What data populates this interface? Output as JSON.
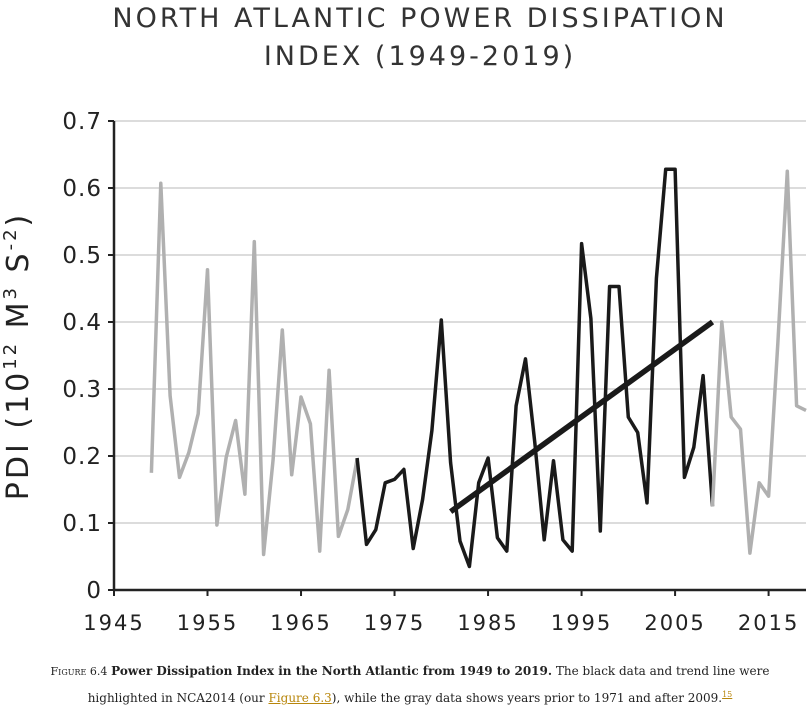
{
  "chart_data": {
    "type": "line",
    "title_line1": "NORTH ATLANTIC POWER DISSIPATION",
    "title_line2": "INDEX (1949-2019)",
    "ylabel_main": "PDI (10",
    "ylabel_exp1": "12",
    "ylabel_mid": " M",
    "ylabel_exp2": "3",
    "ylabel_s": " S",
    "ylabel_exp3": "-2",
    "ylabel_close": ")",
    "xlabel": "",
    "xlim": [
      1945,
      2019
    ],
    "ylim": [
      0,
      0.7
    ],
    "yticks": [
      "0",
      "0.1",
      "0.2",
      "0.3",
      "0.4",
      "0.5",
      "0.6",
      "0.7"
    ],
    "xticks": [
      "1945",
      "1955",
      "1965",
      "1975",
      "1985",
      "1995",
      "2005",
      "2015"
    ],
    "grid": "horizontal",
    "colors": {
      "gray": "#b0b0b0",
      "black": "#1a1a1a",
      "grid": "#d0d0d0"
    },
    "series": [
      {
        "years": [
          1949,
          1950,
          1951,
          1952,
          1953,
          1954,
          1955,
          1956,
          1957,
          1958,
          1959,
          1960,
          1961,
          1962,
          1963,
          1964,
          1965,
          1966,
          1967,
          1968,
          1969,
          1970,
          1971
        ],
        "values": [
          0.175,
          0.607,
          0.29,
          0.168,
          0.205,
          0.263,
          0.478,
          0.097,
          0.198,
          0.253,
          0.143,
          0.52,
          0.053,
          0.193,
          0.388,
          0.172,
          0.288,
          0.248,
          0.058,
          0.328,
          0.08,
          0.12,
          0.195
        ],
        "color": "gray"
      },
      {
        "years": [
          1971,
          1972,
          1973,
          1974,
          1975,
          1976,
          1977,
          1978,
          1979,
          1980,
          1981,
          1982,
          1983,
          1984,
          1985,
          1986,
          1987,
          1988,
          1989,
          1990,
          1991,
          1992,
          1993,
          1994,
          1995,
          1996,
          1997,
          1998,
          1999,
          2000,
          2001,
          2002,
          2003,
          2004,
          2005,
          2006,
          2007,
          2008,
          2009
        ],
        "values": [
          0.197,
          0.068,
          0.09,
          0.16,
          0.165,
          0.18,
          0.062,
          0.135,
          0.238,
          0.403,
          0.19,
          0.073,
          0.035,
          0.16,
          0.197,
          0.078,
          0.058,
          0.275,
          0.345,
          0.22,
          0.075,
          0.193,
          0.075,
          0.058,
          0.517,
          0.405,
          0.088,
          0.453,
          0.453,
          0.258,
          0.235,
          0.13,
          0.465,
          0.628,
          0.628,
          0.168,
          0.213,
          0.32,
          0.125
        ],
        "color": "black"
      },
      {
        "years": [
          2009,
          2010,
          2011,
          2012,
          2013,
          2014,
          2015,
          2016,
          2017,
          2018,
          2019
        ],
        "values": [
          0.125,
          0.4,
          0.258,
          0.24,
          0.055,
          0.16,
          0.14,
          0.37,
          0.625,
          0.275,
          0.268
        ],
        "color": "gray"
      }
    ],
    "trend_line": {
      "x": [
        1981,
        2009
      ],
      "y": [
        0.117,
        0.4
      ],
      "color": "black"
    }
  },
  "caption": {
    "figure_label": "Figure 6.4",
    "bold_text": "Power Dissipation Index in the North Atlantic from 1949 to 2019.",
    "text_1": "The black data and trend line were highlighted in NCA2014 (our",
    "link_text": "Figure 6.3",
    "text_2": "), while the gray data shows years prior to 1971 and after 2009.",
    "footnote": "15"
  }
}
